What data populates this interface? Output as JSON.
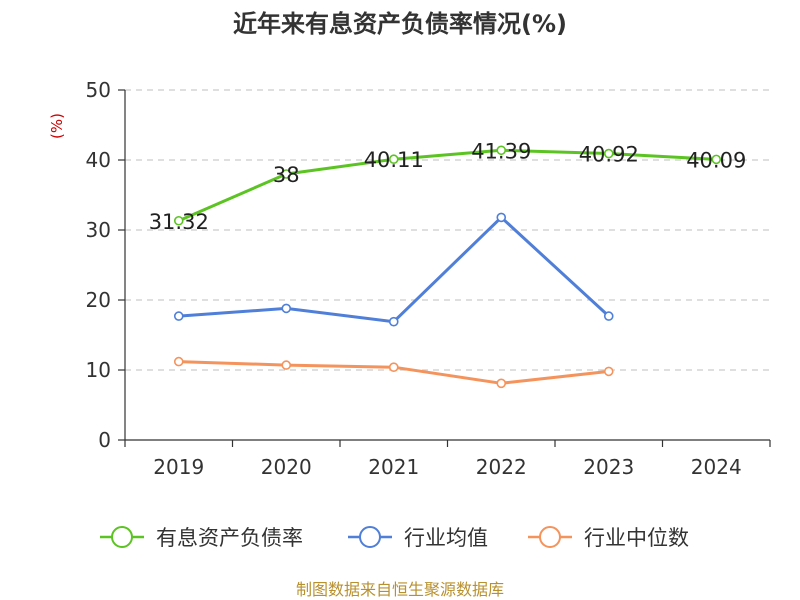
{
  "chart_data": {
    "type": "line",
    "title": "近年来有息资产负债率情况(%)",
    "ylabel": "(%)",
    "xlabel": "",
    "categories": [
      "2019",
      "2020",
      "2021",
      "2022",
      "2023",
      "2024"
    ],
    "ylim": [
      0,
      50
    ],
    "yticks": [
      0,
      10,
      20,
      30,
      40,
      50
    ],
    "grid": true,
    "legend_position": "bottom",
    "series": [
      {
        "name": "有息资产负债率",
        "color": "#5cc422",
        "values": [
          31.32,
          38,
          40.11,
          41.39,
          40.92,
          40.09
        ],
        "labels": [
          "31.32",
          "38",
          "40.11",
          "41.39",
          "40.92",
          "40.09"
        ]
      },
      {
        "name": "行业均值",
        "color": "#4f7fd8",
        "values": [
          17.7,
          18.8,
          16.9,
          31.8,
          17.7,
          null
        ]
      },
      {
        "name": "行业中位数",
        "color": "#f5935c",
        "values": [
          11.2,
          10.7,
          10.4,
          8.1,
          9.8,
          null
        ]
      }
    ],
    "source": "制图数据来自恒生聚源数据库"
  }
}
